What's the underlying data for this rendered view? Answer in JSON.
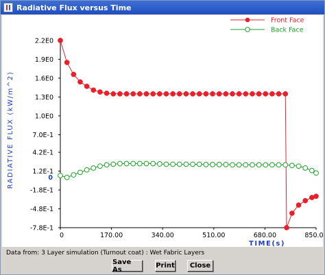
{
  "window": {
    "title": "Radiative Flux versus Time"
  },
  "chart_data": {
    "type": "line",
    "xlabel": "TIME(s)",
    "ylabel": "RADIATIVE FLUX (kW/m^2)",
    "xlim": [
      0,
      850
    ],
    "ylim": [
      -0.78,
      2.2
    ],
    "xticks": [
      0,
      170,
      340,
      510,
      680,
      850
    ],
    "xtick_labels": [
      "0",
      "170.00",
      "340.00",
      "510.00",
      "680.00",
      "850.00"
    ],
    "yticks": [
      2.2,
      1.9,
      1.6,
      1.3,
      1.0,
      0.7,
      0.42,
      0.12,
      -0.18,
      -0.48,
      -0.78
    ],
    "ytick_labels": [
      "2.2E0",
      "1.9E0",
      "1.6E0",
      "1.3E0",
      "1.0E0",
      "7.0E-1",
      "4.2E-1",
      "1.2E-1",
      "-1.8E-1",
      "-4.8E-1",
      "-7.8E-1"
    ],
    "zero_label": "0",
    "legend_position": "top-right",
    "series": [
      {
        "name": "Front Face",
        "color": "#e8202a",
        "marker": "filled-circle",
        "x": [
          0,
          22,
          44,
          66,
          88,
          110,
          132,
          154,
          176,
          198,
          220,
          242,
          264,
          286,
          308,
          330,
          352,
          374,
          396,
          418,
          440,
          462,
          484,
          506,
          528,
          550,
          572,
          594,
          616,
          638,
          660,
          682,
          704,
          726,
          748
        ],
        "y": [
          2.2,
          1.85,
          1.66,
          1.54,
          1.47,
          1.41,
          1.38,
          1.36,
          1.35,
          1.35,
          1.35,
          1.35,
          1.35,
          1.35,
          1.35,
          1.35,
          1.35,
          1.35,
          1.35,
          1.35,
          1.35,
          1.35,
          1.35,
          1.35,
          1.35,
          1.35,
          1.35,
          1.35,
          1.35,
          1.35,
          1.35,
          1.35,
          1.35,
          1.35,
          1.35
        ],
        "x2": [
          748,
          752,
          770,
          792,
          814,
          836,
          850
        ],
        "y2": [
          1.35,
          -0.78,
          -0.55,
          -0.42,
          -0.35,
          -0.3,
          -0.28
        ]
      },
      {
        "name": "Back Face",
        "color": "#1fa02a",
        "marker": "open-circle",
        "x": [
          0,
          22,
          44,
          66,
          88,
          110,
          132,
          154,
          176,
          198,
          220,
          242,
          264,
          286,
          308,
          330,
          352,
          374,
          396,
          418,
          440,
          462,
          484,
          506,
          528,
          550,
          572,
          594,
          616,
          638,
          660,
          682,
          704,
          726,
          748,
          770,
          792,
          814,
          836,
          850
        ],
        "y": [
          0.05,
          0.02,
          0.06,
          0.1,
          0.14,
          0.17,
          0.2,
          0.22,
          0.23,
          0.24,
          0.24,
          0.24,
          0.24,
          0.24,
          0.24,
          0.235,
          0.23,
          0.23,
          0.23,
          0.23,
          0.23,
          0.23,
          0.225,
          0.225,
          0.225,
          0.225,
          0.22,
          0.22,
          0.22,
          0.22,
          0.22,
          0.22,
          0.22,
          0.22,
          0.22,
          0.21,
          0.2,
          0.17,
          0.13,
          0.09
        ]
      }
    ]
  },
  "footer": {
    "data_source": "Data from: 3 Layer simulation (Turnout coat) : Wet Fabric Layers"
  },
  "buttons": {
    "save_as": "Save As",
    "print": "Print",
    "close": "Close"
  }
}
